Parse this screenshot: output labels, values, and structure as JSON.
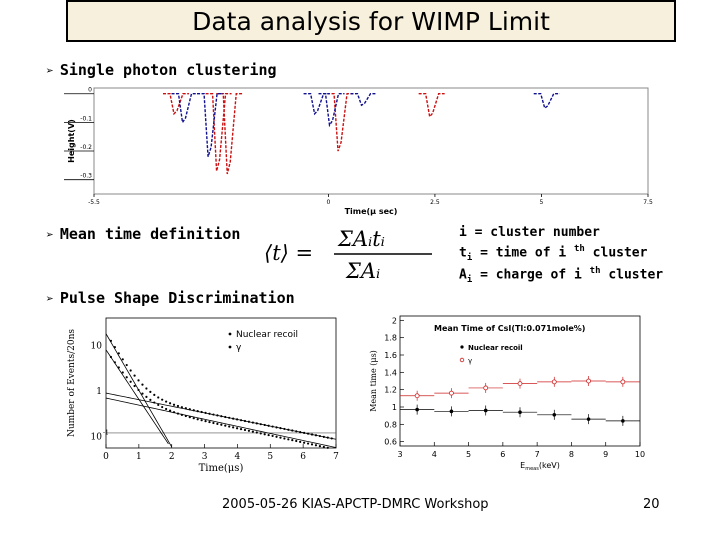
{
  "slide": {
    "title": "Data analysis for WIMP Limit",
    "bullets": [
      "Single photon clustering",
      "Mean time definition",
      "Pulse Shape Discrimination"
    ],
    "definitions": {
      "i": "i = cluster number",
      "t": "t",
      "t_sub": "i",
      "t_rest": " = time of i ",
      "t_sup": "th",
      "t_tail": " cluster",
      "a": "A",
      "a_sub": "i",
      "a_rest": " = charge of i ",
      "a_sup": "th",
      "a_tail": " cluster"
    },
    "formula": {
      "lhs": "⟨t⟩ =",
      "num": "ΣAᵢtᵢ",
      "den": "ΣAᵢ"
    },
    "footer": {
      "text": "2005-05-26 KIAS-APCTP-DMRC Workshop",
      "page": "20"
    },
    "colors": {
      "red": "#cc1010",
      "blue": "#101090",
      "title_bg": "#f7f0dc"
    }
  },
  "chart_data": [
    {
      "type": "line",
      "xlabel": "Time(μ sec)",
      "ylabel": "Height(V)",
      "x_ticks": [
        "-5.5",
        "0",
        "2.5",
        "5",
        "7.5"
      ],
      "y_ticks": [
        "0",
        "-0.1",
        "-0.2",
        "-0.3"
      ],
      "xlim": [
        -5.5,
        7.5
      ],
      "ylim": [
        -0.35,
        0.02
      ],
      "series": [
        {
          "color": "red",
          "pulses": [
            [
              -3.6,
              -0.07
            ],
            [
              -2.6,
              -0.27
            ],
            [
              -2.35,
              -0.28
            ],
            [
              0.25,
              -0.2
            ],
            [
              2.4,
              -0.08
            ]
          ]
        },
        {
          "color": "blue",
          "pulses": [
            [
              -3.4,
              -0.1
            ],
            [
              -2.8,
              -0.22
            ],
            [
              -0.3,
              -0.07
            ],
            [
              0.05,
              -0.11
            ],
            [
              0.8,
              -0.04
            ],
            [
              5.1,
              -0.05
            ]
          ]
        }
      ]
    },
    {
      "type": "line",
      "ylabel": "Number of Events/20ns",
      "xlabel": "Time(μs)",
      "x_ticks": [
        "0",
        "1",
        "2",
        "3",
        "4",
        "5",
        "6",
        "7"
      ],
      "y_ticks": [
        "10",
        "1",
        "10"
      ],
      "y_tick_sup": [
        "",
        "",
        "-1"
      ],
      "xlim": [
        0,
        7
      ],
      "ylim_log10": [
        -1.25,
        1.6
      ],
      "legend": [
        "Nuclear recoil",
        "γ"
      ],
      "series": [
        {
          "name": "Nuclear recoil",
          "shape": "points",
          "tau1": 0.35,
          "a1": 18,
          "tau2": 3.0,
          "a2": 1.8
        },
        {
          "name": "γ",
          "shape": "points",
          "tau1": 0.4,
          "a1": 8,
          "tau2": 2.8,
          "a2": 1.4
        }
      ]
    },
    {
      "type": "scatter",
      "title": "Mean Time of CsI(Tl:0.071mole%)",
      "ylabel": "Mean time (μs)",
      "xlabel": "E",
      "xlabel_sub": "meas",
      "xlabel_tail": "(keV)",
      "x_ticks": [
        "3",
        "4",
        "5",
        "6",
        "7",
        "8",
        "9",
        "10"
      ],
      "y_ticks": [
        "0.6",
        "0.8",
        "1",
        "1.2",
        "1.4",
        "1.6",
        "1.8",
        "2"
      ],
      "xlim": [
        3,
        10
      ],
      "ylim": [
        0.55,
        2.05
      ],
      "legend": [
        "Nuclear recoil",
        "γ"
      ],
      "series": [
        {
          "name": "γ",
          "color": "#cc2020",
          "x": [
            3.5,
            4.5,
            5.5,
            6.5,
            7.5,
            8.5,
            9.5
          ],
          "y": [
            1.13,
            1.16,
            1.22,
            1.27,
            1.29,
            1.3,
            1.29
          ]
        },
        {
          "name": "Nuclear recoil",
          "color": "#000000",
          "x": [
            3.5,
            4.5,
            5.5,
            6.5,
            7.5,
            8.5,
            9.5
          ],
          "y": [
            0.97,
            0.95,
            0.96,
            0.94,
            0.91,
            0.86,
            0.84
          ]
        }
      ]
    }
  ]
}
